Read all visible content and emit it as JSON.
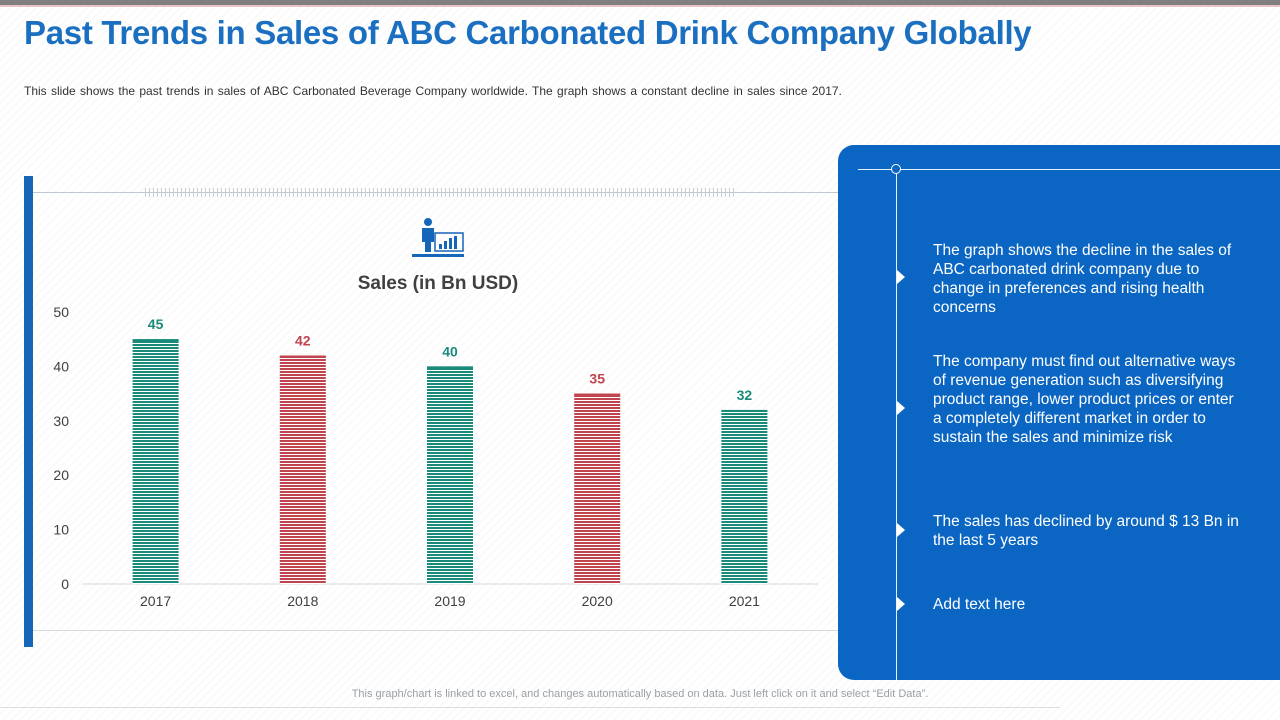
{
  "header": {
    "title": "Past Trends in Sales of ABC Carbonated Drink Company Globally",
    "subtitle": "This slide shows the past trends in sales of ABC Carbonated Beverage Company worldwide. The graph shows a constant decline in sales since 2017."
  },
  "chart_icon": "presenter-with-bar-chart-icon",
  "chart_data": {
    "type": "bar",
    "title": "Sales (in Bn USD)",
    "categories": [
      "2017",
      "2018",
      "2019",
      "2020",
      "2021"
    ],
    "values": [
      45,
      42,
      40,
      35,
      32
    ],
    "data_labels": [
      "45",
      "42",
      "40",
      "35",
      "32"
    ],
    "bar_colors": [
      "#1a8a7a",
      "#c0444d",
      "#1a8a7a",
      "#c0444d",
      "#1a8a7a"
    ],
    "ylim": [
      0,
      50
    ],
    "yticks": [
      0,
      10,
      20,
      30,
      40,
      50
    ],
    "xlabel": "",
    "ylabel": "",
    "grid": false
  },
  "panel": {
    "bullets": [
      "The graph shows the decline in the sales of ABC carbonated drink company due to change in preferences and rising health concerns",
      "The company must find out alternative ways of revenue generation such as diversifying product range, lower product prices or enter a completely different market in order to sustain the sales and minimize risk",
      "The sales has declined by around $ 13 Bn in the last 5 years",
      "Add text here"
    ]
  },
  "footer": {
    "note": "This graph/chart is linked to excel, and changes automatically based on data. Just left click on it and select “Edit Data”."
  },
  "colors": {
    "title": "#1b6fc0",
    "panel": "#0a66c2",
    "accent_bar": "#1565b8",
    "teal": "#1a8a7a",
    "red": "#c0444d"
  }
}
